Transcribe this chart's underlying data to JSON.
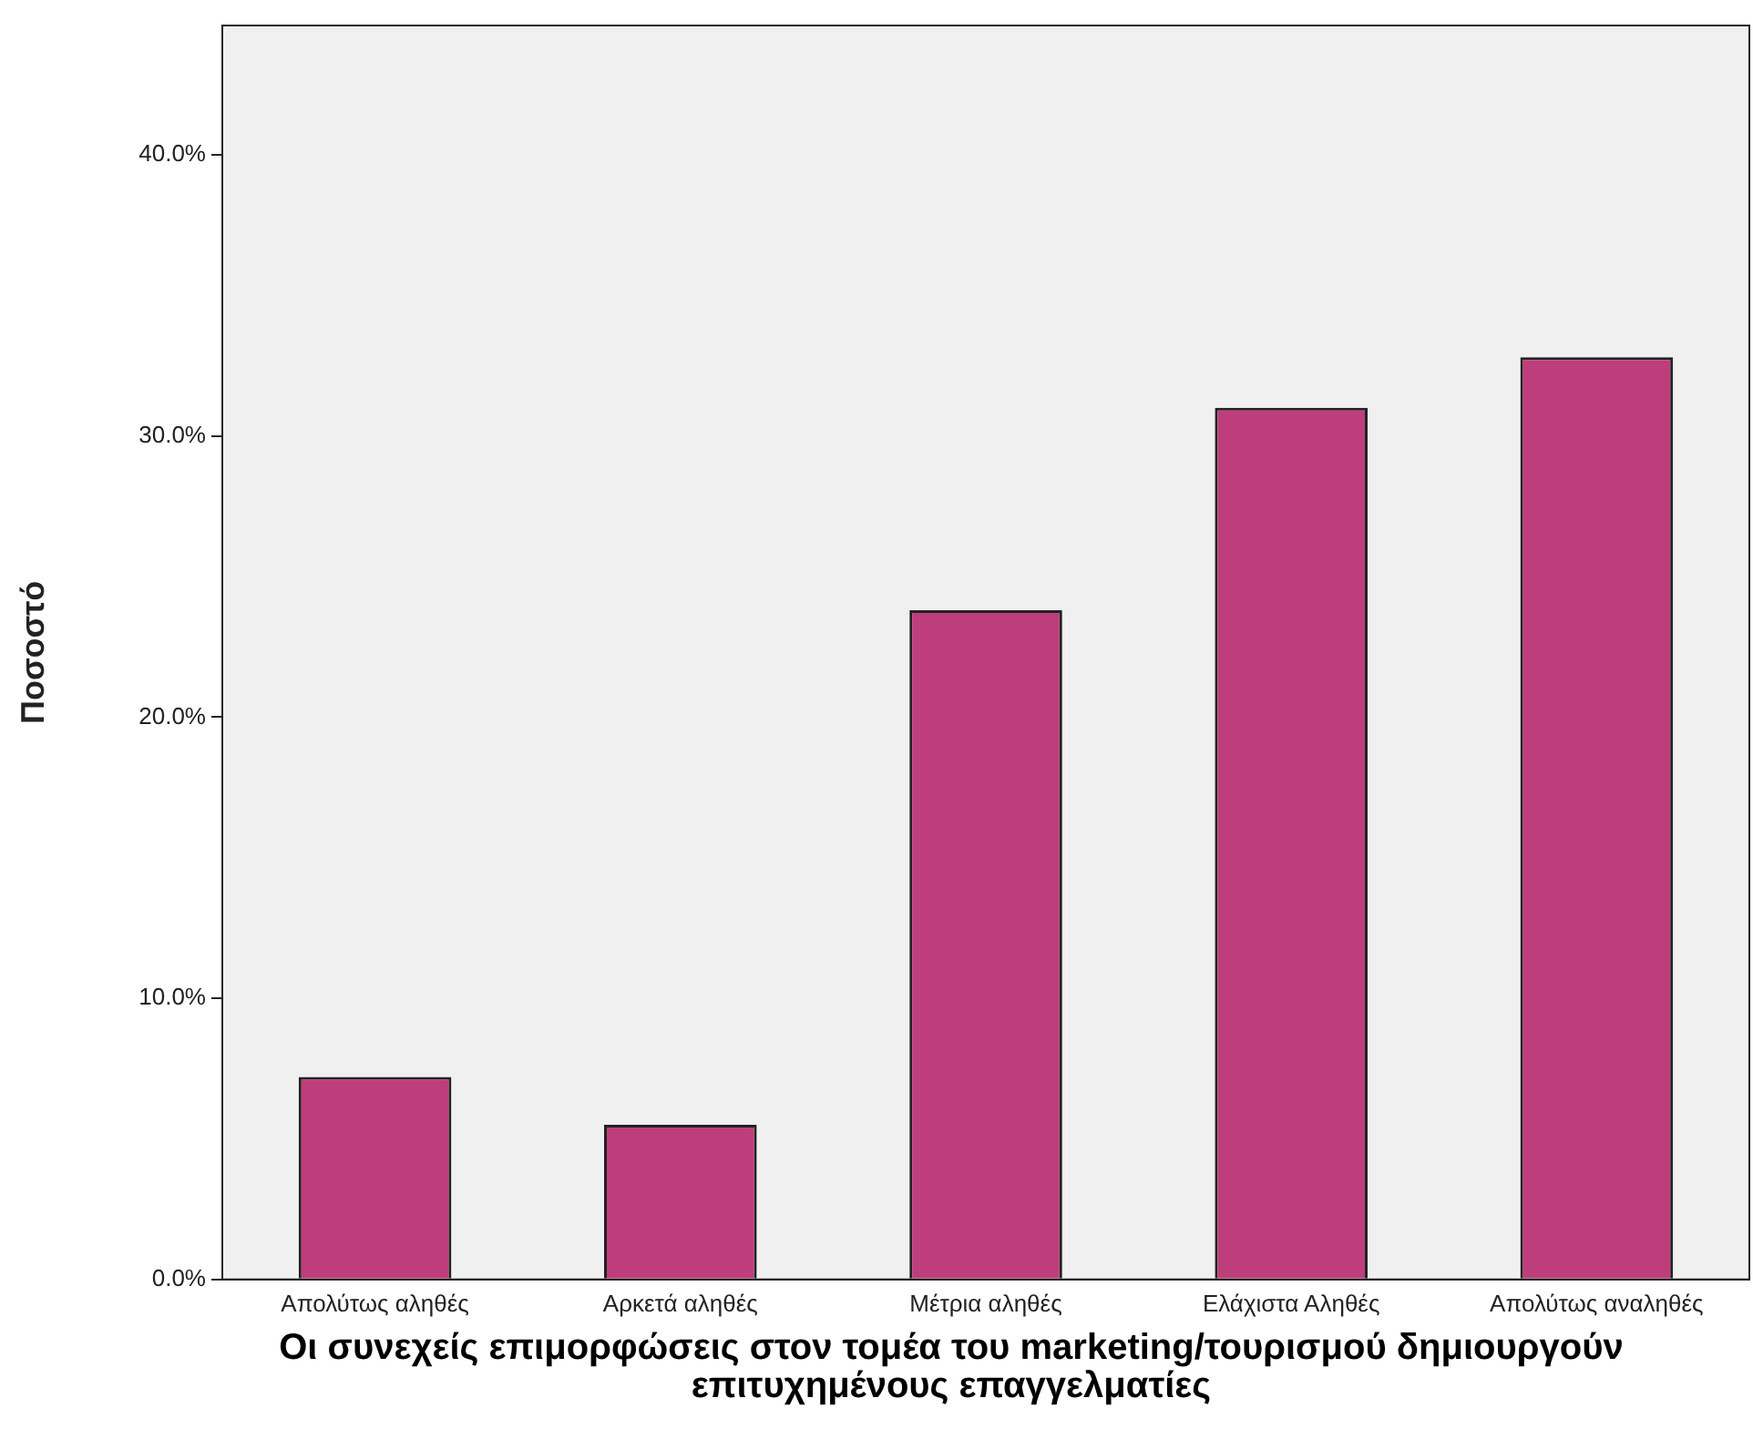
{
  "chart_data": {
    "type": "bar",
    "xlabel": "Οι συνεχείς επιμορφώσεις στον τομέα του marketing/τουρισμού δημιουργούν επιτυχημένους επαγγελματίες",
    "ylabel": "Ποσοστό",
    "categories": [
      "Απολύτως αληθές",
      "Αρκετά αληθές",
      "Μέτρια αληθές",
      "Ελάχιστα Αληθές",
      "Απολύτως αναληθές"
    ],
    "values": [
      7.2,
      5.5,
      23.8,
      31.0,
      32.8
    ],
    "color": "#be3e7c",
    "ylim": [
      0,
      44.6
    ],
    "yticks": [
      {
        "value": 0,
        "label": "0.0%"
      },
      {
        "value": 10,
        "label": "10.0%"
      },
      {
        "value": 20,
        "label": "20.0%"
      },
      {
        "value": 30,
        "label": "30.0%"
      },
      {
        "value": 40,
        "label": "40.0%"
      }
    ],
    "grid": false,
    "legend": false
  }
}
